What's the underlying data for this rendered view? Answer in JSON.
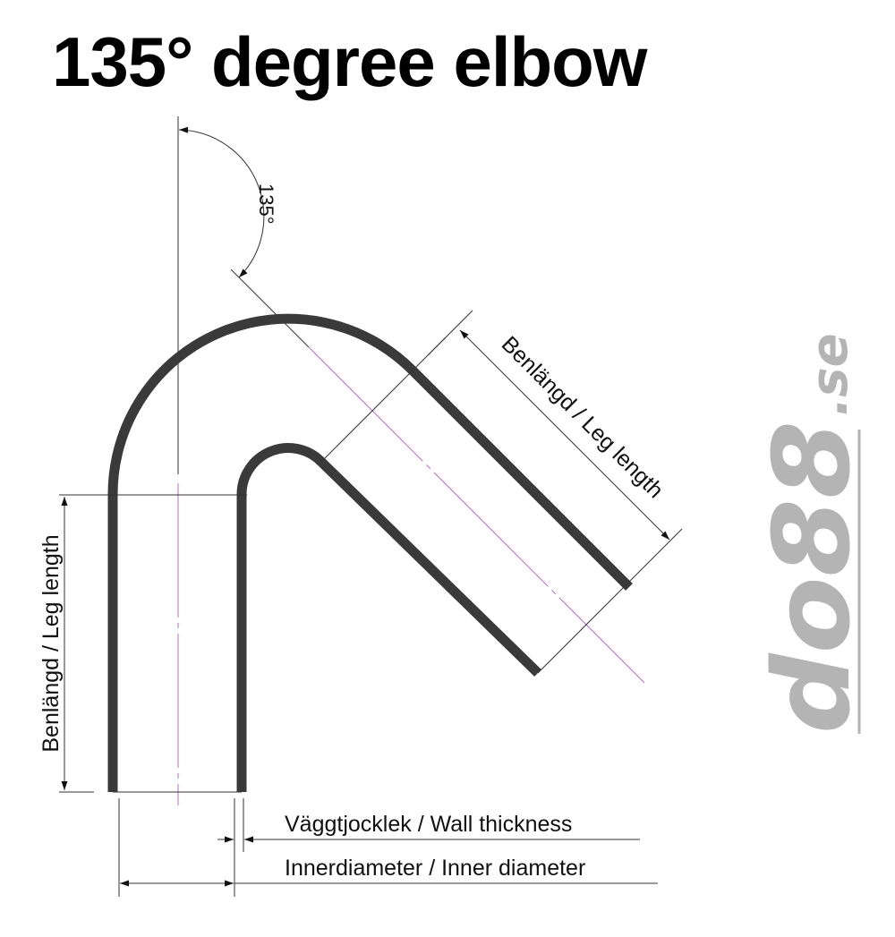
{
  "title": "135° degree elbow",
  "angle_label": "135°",
  "labels": {
    "leg_length_vertical": "Benlängd / Leg length",
    "leg_length_diagonal": "Benlängd / Leg length",
    "wall_thickness": "Väggtjocklek / Wall thickness",
    "inner_diameter": "Innerdiameter / Inner diameter"
  },
  "logo": {
    "text_main": "do88",
    "text_suffix": ".se",
    "color": "#b4b4b4"
  },
  "colors": {
    "pipe": "#3a3a3a",
    "centerline": "#b070c0",
    "dimension": "#333333"
  }
}
